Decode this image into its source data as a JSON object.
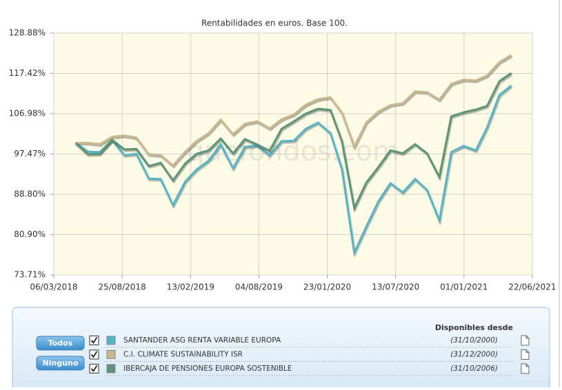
{
  "chart_data": {
    "type": "line",
    "title": "Rentabilidades en euros. Base 100.",
    "watermark": "quefondos.com",
    "x": [
      "30/04/2018",
      "31/05/2018",
      "30/06/2018",
      "31/07/2018",
      "31/08/2018",
      "30/09/2018",
      "31/10/2018",
      "30/11/2018",
      "31/12/2018",
      "31/01/2019",
      "28/02/2019",
      "31/03/2019",
      "30/04/2019",
      "31/05/2019",
      "30/06/2019",
      "31/07/2019",
      "31/08/2019",
      "30/09/2019",
      "31/10/2019",
      "30/11/2019",
      "31/12/2019",
      "31/01/2020",
      "29/02/2020",
      "31/03/2020",
      "30/04/2020",
      "31/05/2020",
      "30/06/2020",
      "31/07/2020",
      "31/08/2020",
      "30/09/2020",
      "31/10/2020",
      "30/11/2020",
      "31/12/2020",
      "31/01/2021",
      "28/02/2021",
      "31/03/2021",
      "30/04/2021"
    ],
    "series": [
      {
        "name": "SANTANDER ASG RENTA VARIABLE EUROPA",
        "color": "#56b4c8",
        "values": [
          100,
          98.0,
          97.9,
          100.7,
          97.2,
          97.5,
          92.1,
          92.0,
          86.6,
          91.5,
          94.0,
          96.0,
          99.7,
          94.3,
          99.1,
          99.4,
          97.2,
          100.4,
          100.5,
          103.3,
          104.8,
          102.3,
          94.1,
          77.6,
          82.4,
          87.4,
          91.1,
          89.2,
          92.0,
          89.7,
          83.6,
          97.9,
          99.3,
          98.3,
          103.6,
          111.7,
          114.2
        ]
      },
      {
        "name": "C.I. CLIMATE SUSTAINABILITY ISR",
        "color": "#c9b68c",
        "values": [
          100,
          100,
          99.7,
          101.4,
          101.7,
          101.2,
          97.4,
          97.2,
          94.9,
          98.0,
          100.4,
          102.3,
          105.5,
          102.0,
          104.5,
          105.1,
          103.4,
          105.6,
          106.8,
          109.2,
          110.6,
          111.1,
          107.2,
          99.1,
          104.8,
          107.5,
          109.1,
          109.6,
          112.6,
          112.4,
          110.5,
          114.6,
          115.7,
          115.5,
          116.8,
          120.5,
          122.5
        ]
      },
      {
        "name": "IBERCAJA DE PENSIONES EUROPA SOSTENIBLE",
        "color": "#5b9478",
        "values": [
          100,
          97.4,
          97.5,
          100.7,
          98.5,
          98.6,
          94.8,
          95.5,
          91.7,
          95.4,
          97.5,
          98.3,
          101.0,
          97.6,
          100.9,
          99.6,
          98.2,
          103.3,
          105.1,
          107.0,
          108.2,
          107.9,
          100.4,
          86.0,
          91.2,
          94.6,
          98.3,
          97.6,
          99.7,
          97.6,
          92.4,
          106.3,
          107.3,
          108.0,
          108.9,
          115.3,
          117.5
        ]
      }
    ],
    "xlim": [
      "06/03/2018",
      "22/06/2021"
    ],
    "xticks": [
      "06/03/2018",
      "25/08/2018",
      "13/02/2019",
      "04/08/2019",
      "23/01/2020",
      "13/07/2020",
      "01/01/2021",
      "22/06/2021"
    ],
    "ylim": [
      73.71,
      128.88
    ],
    "log_y": true,
    "grid": true,
    "yticks": [
      {
        "value": 73.71,
        "label": "73.71%"
      },
      {
        "value": 80.9,
        "label": "80.90%"
      },
      {
        "value": 88.8,
        "label": "88.80%"
      },
      {
        "value": 97.47,
        "label": "97.47%"
      },
      {
        "value": 106.98,
        "label": "106.98%"
      },
      {
        "value": 117.42,
        "label": "117.42%"
      },
      {
        "value": 128.88,
        "label": "128.88%"
      }
    ]
  },
  "panel": {
    "buttons": [
      "Todos",
      "Ninguno"
    ],
    "header": "Disponibles desde",
    "since": [
      "(31/10/2000)",
      "(31/12/2000)",
      "(31/10/2006)"
    ]
  }
}
